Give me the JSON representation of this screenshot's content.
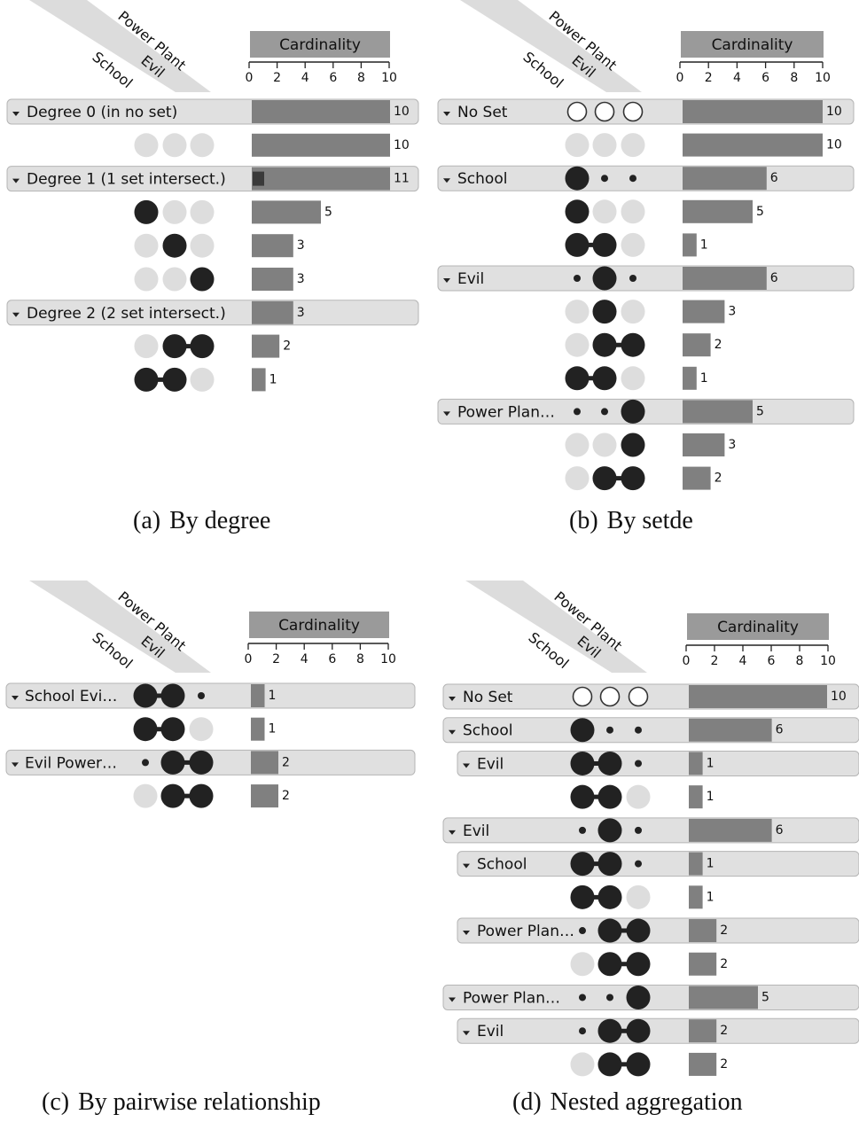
{
  "sets": [
    "School",
    "Evil",
    "Power Plant"
  ],
  "axis": {
    "title": "Cardinality",
    "ticks": [
      "0",
      "2",
      "4",
      "6",
      "8",
      "10"
    ],
    "max": 10
  },
  "panels": [
    {
      "caption": {
        "label": "(a)",
        "text": "By degree"
      },
      "rows": [
        {
          "kind": "group",
          "indent": 0,
          "label": "Degree 0 (in no set)",
          "dots": [],
          "value": 10,
          "value_label": "10"
        },
        {
          "kind": "subset",
          "dots": [
            "none",
            "none",
            "none"
          ],
          "value": 10,
          "value_label": "10"
        },
        {
          "kind": "group",
          "indent": 0,
          "label": "Degree 1 (1 set intersect.)",
          "dots": [],
          "value": 11,
          "value_label": "11",
          "overflow": true
        },
        {
          "kind": "subset",
          "dots": [
            "in",
            "none",
            "none"
          ],
          "value": 5,
          "value_label": "5"
        },
        {
          "kind": "subset",
          "dots": [
            "none",
            "in",
            "none"
          ],
          "value": 3,
          "value_label": "3"
        },
        {
          "kind": "subset",
          "dots": [
            "none",
            "none",
            "in"
          ],
          "value": 3,
          "value_label": "3"
        },
        {
          "kind": "group",
          "indent": 0,
          "label": "Degree 2 (2 set intersect.)",
          "dots": [],
          "value": 3,
          "value_label": "3"
        },
        {
          "kind": "subset",
          "dots": [
            "none",
            "in",
            "in"
          ],
          "value": 2,
          "value_label": "2"
        },
        {
          "kind": "subset",
          "dots": [
            "in",
            "in",
            "none"
          ],
          "value": 1,
          "value_label": "1"
        }
      ]
    },
    {
      "caption": {
        "label": "(b)",
        "text": "By setde"
      },
      "rows": [
        {
          "kind": "group",
          "indent": 0,
          "label": "No Set",
          "dots": [
            "ring",
            "ring",
            "ring"
          ],
          "value": 10,
          "value_label": "10"
        },
        {
          "kind": "subset",
          "dots": [
            "none",
            "none",
            "none"
          ],
          "value": 10,
          "value_label": "10"
        },
        {
          "kind": "group",
          "indent": 0,
          "label": "School",
          "dots": [
            "in",
            "small",
            "small"
          ],
          "value": 6,
          "value_label": "6"
        },
        {
          "kind": "subset",
          "dots": [
            "in",
            "none",
            "none"
          ],
          "value": 5,
          "value_label": "5"
        },
        {
          "kind": "subset",
          "dots": [
            "in",
            "in",
            "none"
          ],
          "value": 1,
          "value_label": "1"
        },
        {
          "kind": "group",
          "indent": 0,
          "label": "Evil",
          "dots": [
            "small",
            "in",
            "small"
          ],
          "value": 6,
          "value_label": "6"
        },
        {
          "kind": "subset",
          "dots": [
            "none",
            "in",
            "none"
          ],
          "value": 3,
          "value_label": "3"
        },
        {
          "kind": "subset",
          "dots": [
            "none",
            "in",
            "in"
          ],
          "value": 2,
          "value_label": "2"
        },
        {
          "kind": "subset",
          "dots": [
            "in",
            "in",
            "none"
          ],
          "value": 1,
          "value_label": "1"
        },
        {
          "kind": "group",
          "indent": 0,
          "label": "Power Plan…",
          "dots": [
            "small",
            "small",
            "in"
          ],
          "value": 5,
          "value_label": "5"
        },
        {
          "kind": "subset",
          "dots": [
            "none",
            "none",
            "in"
          ],
          "value": 3,
          "value_label": "3"
        },
        {
          "kind": "subset",
          "dots": [
            "none",
            "in",
            "in"
          ],
          "value": 2,
          "value_label": "2"
        }
      ]
    },
    {
      "caption": {
        "label": "(c)",
        "text": "By pairwise relationship"
      },
      "rows": [
        {
          "kind": "group",
          "indent": 0,
          "label": "School Evi…",
          "dots": [
            "in",
            "in",
            "small"
          ],
          "value": 1,
          "value_label": "1"
        },
        {
          "kind": "subset",
          "dots": [
            "in",
            "in",
            "none"
          ],
          "value": 1,
          "value_label": "1"
        },
        {
          "kind": "group",
          "indent": 0,
          "label": "Evil Power…",
          "dots": [
            "small",
            "in",
            "in"
          ],
          "value": 2,
          "value_label": "2"
        },
        {
          "kind": "subset",
          "dots": [
            "none",
            "in",
            "in"
          ],
          "value": 2,
          "value_label": "2"
        }
      ]
    },
    {
      "caption": {
        "label": "(d)",
        "text": "Nested aggregation"
      },
      "rows": [
        {
          "kind": "group",
          "indent": 0,
          "label": "No Set",
          "dots": [
            "ring",
            "ring",
            "ring"
          ],
          "value": 10,
          "value_label": "10"
        },
        {
          "kind": "group",
          "indent": 0,
          "label": "School",
          "dots": [
            "in",
            "small",
            "small"
          ],
          "value": 6,
          "value_label": "6"
        },
        {
          "kind": "group",
          "indent": 1,
          "label": "Evil",
          "dots": [
            "in",
            "in",
            "small"
          ],
          "value": 1,
          "value_label": "1"
        },
        {
          "kind": "subset",
          "dots": [
            "in",
            "in",
            "none"
          ],
          "value": 1,
          "value_label": "1"
        },
        {
          "kind": "group",
          "indent": 0,
          "label": "Evil",
          "dots": [
            "small",
            "in",
            "small"
          ],
          "value": 6,
          "value_label": "6"
        },
        {
          "kind": "group",
          "indent": 1,
          "label": "School",
          "dots": [
            "in",
            "in",
            "small"
          ],
          "value": 1,
          "value_label": "1"
        },
        {
          "kind": "subset",
          "dots": [
            "in",
            "in",
            "none"
          ],
          "value": 1,
          "value_label": "1"
        },
        {
          "kind": "group",
          "indent": 1,
          "label": "Power Plan…",
          "dots": [
            "small",
            "in",
            "in"
          ],
          "value": 2,
          "value_label": "2"
        },
        {
          "kind": "subset",
          "dots": [
            "none",
            "in",
            "in"
          ],
          "value": 2,
          "value_label": "2"
        },
        {
          "kind": "group",
          "indent": 0,
          "label": "Power Plan…",
          "dots": [
            "small",
            "small",
            "in"
          ],
          "value": 5,
          "value_label": "5"
        },
        {
          "kind": "group",
          "indent": 1,
          "label": "Evil",
          "dots": [
            "small",
            "in",
            "in"
          ],
          "value": 2,
          "value_label": "2"
        },
        {
          "kind": "subset",
          "dots": [
            "none",
            "in",
            "in"
          ],
          "value": 2,
          "value_label": "2"
        }
      ]
    }
  ],
  "colors": {
    "set_dot": "#222222",
    "empty_dot": "#dddddd",
    "bar": "#808080",
    "bar_overflow": "#3a3a3a",
    "group_row": "#e0e0e0",
    "group_border": "#b5b5b5",
    "header_box": "#9a9a9a",
    "set_band": "#dcdcdc"
  }
}
